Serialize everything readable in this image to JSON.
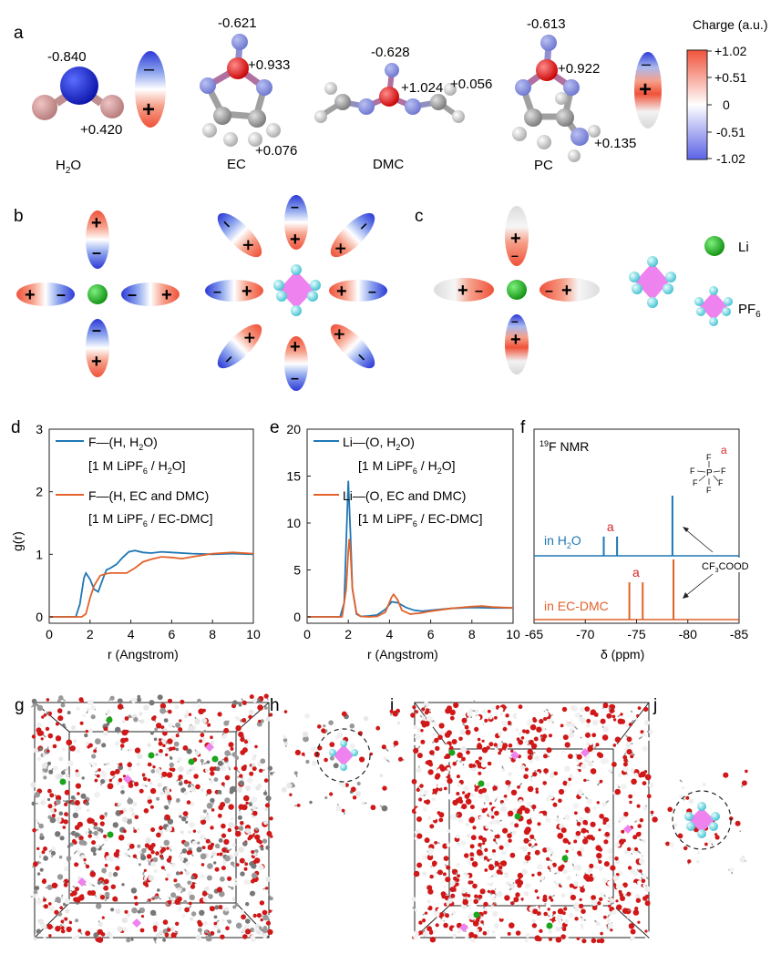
{
  "panel_letters": [
    "a",
    "b",
    "c",
    "d",
    "e",
    "f",
    "g",
    "h",
    "i",
    "j"
  ],
  "molecules": [
    {
      "name": "H2O",
      "label_main": "H",
      "label_sub": "2",
      "label_tail": "O",
      "charges": [
        "-0.840",
        "+0.420"
      ]
    },
    {
      "name": "EC",
      "label_main": "EC",
      "label_sub": "",
      "label_tail": "",
      "charges": [
        "-0.621",
        "+0.933",
        "+0.076"
      ]
    },
    {
      "name": "DMC",
      "label_main": "DMC",
      "label_sub": "",
      "label_tail": "",
      "charges": [
        "-0.628",
        "+1.024",
        "+0.056"
      ]
    },
    {
      "name": "PC",
      "label_main": "PC",
      "label_sub": "",
      "label_tail": "",
      "charges": [
        "-0.613",
        "+0.922",
        "+0.135"
      ]
    }
  ],
  "colorbar": {
    "title": "Charge (a.u.)",
    "ticks": [
      "+1.02",
      "+0.51",
      "0",
      "-0.51",
      "-1.02"
    ],
    "colors": {
      "positive": "#f25c54",
      "neutral": "#ffffff",
      "negative": "#5b62e6"
    }
  },
  "legend_c": {
    "li_label": "Li",
    "pf6_main": "PF",
    "pf6_sub": "6"
  },
  "colors": {
    "water_series": "#1f77b4",
    "organic_series": "#e2622a",
    "nmr_peak_a": "#d62728",
    "li": "#1aa51a",
    "pf6": "#ee82ee",
    "fluorine": "#7fe5f0"
  },
  "charts": [
    {
      "panel": "d",
      "chart_data": {
        "type": "line",
        "xlabel": "r (Angstrom)",
        "ylabel": "g(r)",
        "xlim": [
          0,
          10
        ],
        "ylim": [
          0,
          3
        ],
        "xticks": [
          "0",
          "2",
          "4",
          "6",
          "8",
          "10"
        ],
        "yticks": [
          "0",
          "1",
          "2",
          "3"
        ],
        "legend": [
          {
            "line1": "F—(H, H2O)",
            "line2": "[1 M LiPF6 / H2O]"
          },
          {
            "line1": "F—(H, EC and DMC)",
            "line2": "[1 M LiPF6 / EC-DMC]"
          }
        ],
        "series": [
          {
            "name": "F—(H, H2O)",
            "x": [
              0,
              1.3,
              1.5,
              1.7,
              1.8,
              2.0,
              2.2,
              2.4,
              2.6,
              2.8,
              3.0,
              3.3,
              3.6,
              3.9,
              4.2,
              4.6,
              5.0,
              5.5,
              6.0,
              7.0,
              8.0,
              9.0,
              10.0
            ],
            "y": [
              0,
              0,
              0.2,
              0.62,
              0.7,
              0.6,
              0.44,
              0.4,
              0.58,
              0.75,
              0.78,
              0.84,
              0.95,
              1.04,
              1.06,
              1.03,
              1.02,
              1.04,
              1.03,
              1.01,
              1.0,
              1.01,
              1.0
            ]
          },
          {
            "name": "F—(H, EC and DMC)",
            "x": [
              0,
              1.6,
              1.8,
              2.0,
              2.2,
              2.5,
              2.8,
              3.0,
              3.4,
              3.8,
              4.2,
              4.6,
              5.0,
              5.5,
              6.0,
              6.5,
              7.0,
              8.0,
              9.0,
              10.0
            ],
            "y": [
              0,
              0,
              0.05,
              0.3,
              0.5,
              0.66,
              0.69,
              0.7,
              0.7,
              0.7,
              0.78,
              0.88,
              0.92,
              0.96,
              0.95,
              0.93,
              0.96,
              1.01,
              1.03,
              1.01
            ]
          }
        ]
      }
    },
    {
      "panel": "e",
      "chart_data": {
        "type": "line",
        "xlabel": "r (Angstrom)",
        "ylabel": "",
        "xlim": [
          0,
          10
        ],
        "ylim": [
          0,
          20
        ],
        "xticks": [
          "0",
          "2",
          "4",
          "6",
          "8",
          "10"
        ],
        "yticks": [
          "0",
          "5",
          "10",
          "15",
          "20"
        ],
        "legend": [
          {
            "line1": "Li—(O, H2O)",
            "line2": "[1 M LiPF6 / H2O]"
          },
          {
            "line1": "Li—(O, EC and DMC)",
            "line2": "[1 M LiPF6 / EC-DMC]"
          }
        ],
        "series": [
          {
            "name": "Li—(O, H2O)",
            "x": [
              0,
              1.6,
              1.8,
              1.9,
              2.0,
              2.1,
              2.2,
              2.4,
              2.6,
              3.0,
              3.4,
              3.8,
              4.1,
              4.4,
              4.8,
              5.2,
              5.6,
              6.0,
              7.0,
              8.0,
              9.0,
              10.0
            ],
            "y": [
              0,
              0,
              1.5,
              8,
              14.5,
              9,
              3,
              0.3,
              0.05,
              0.1,
              0.2,
              0.8,
              1.6,
              1.5,
              1.0,
              0.7,
              0.6,
              0.7,
              0.9,
              1.0,
              0.95,
              0.95
            ]
          },
          {
            "name": "Li—(O, EC and DMC)",
            "x": [
              0,
              1.7,
              1.9,
              2.0,
              2.05,
              2.1,
              2.2,
              2.4,
              2.6,
              3.0,
              3.4,
              3.8,
              4.1,
              4.2,
              4.4,
              4.6,
              5.0,
              5.5,
              6.0,
              7.0,
              8.0,
              8.5,
              9.0,
              10.0
            ],
            "y": [
              0,
              0,
              3,
              7,
              8.3,
              7,
              3,
              0.4,
              0.05,
              0,
              0.05,
              0.5,
              2.1,
              2.4,
              1.8,
              0.7,
              0.3,
              0.4,
              0.6,
              0.9,
              1.1,
              1.15,
              1.05,
              0.95
            ]
          }
        ]
      }
    },
    {
      "panel": "f",
      "chart_data": {
        "type": "line",
        "title": "19F NMR",
        "xlabel": "δ  (ppm)",
        "ylabel": "",
        "xlim": [
          -65,
          -85
        ],
        "reversed_x": true,
        "xticks": [
          "-65",
          "-70",
          "-75",
          "-80",
          "-85"
        ],
        "traces": [
          {
            "name": "in H2O",
            "peaks": [
              {
                "ppm": -71.8,
                "height": 0.32,
                "label": "a"
              },
              {
                "ppm": -73.1,
                "height": 0.32,
                "label": "a"
              },
              {
                "ppm": -78.5,
                "height": 1.0,
                "label": ""
              }
            ]
          },
          {
            "name": "in EC-DMC",
            "peaks": [
              {
                "ppm": -74.3,
                "height": 0.62,
                "label": "a"
              },
              {
                "ppm": -75.6,
                "height": 0.62,
                "label": "a"
              },
              {
                "ppm": -78.6,
                "height": 1.0,
                "label": ""
              }
            ]
          }
        ],
        "annotations": {
          "pf6_main": "PF",
          "pf6_sub": "6",
          "tfa": "CF3COOD",
          "peak_label": "a"
        }
      }
    }
  ]
}
